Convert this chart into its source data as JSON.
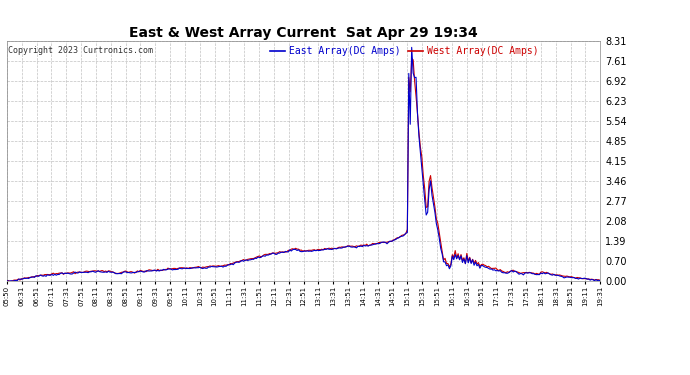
{
  "title": "East & West Array Current  Sat Apr 29 19:34",
  "legend_east": "East Array(DC Amps)",
  "legend_west": "West Array(DC Amps)",
  "copyright": "Copyright 2023 Curtronics.com",
  "east_color": "#0000cc",
  "west_color": "#cc0000",
  "background_color": "#ffffff",
  "grid_color": "#bbbbbb",
  "ylim": [
    0,
    8.31
  ],
  "yticks": [
    0.0,
    0.7,
    1.39,
    2.08,
    2.77,
    3.46,
    4.15,
    4.85,
    5.54,
    6.23,
    6.92,
    7.61,
    8.31
  ],
  "x_labels": [
    "05:50",
    "06:31",
    "06:51",
    "07:11",
    "07:31",
    "07:51",
    "08:11",
    "08:31",
    "08:51",
    "09:11",
    "09:31",
    "09:51",
    "10:11",
    "10:31",
    "10:51",
    "11:11",
    "11:31",
    "11:51",
    "12:11",
    "12:31",
    "12:51",
    "13:11",
    "13:31",
    "13:51",
    "14:11",
    "14:31",
    "14:51",
    "15:11",
    "15:31",
    "15:51",
    "16:11",
    "16:31",
    "16:51",
    "17:11",
    "17:31",
    "17:51",
    "18:11",
    "18:31",
    "18:51",
    "19:11",
    "19:31"
  ]
}
